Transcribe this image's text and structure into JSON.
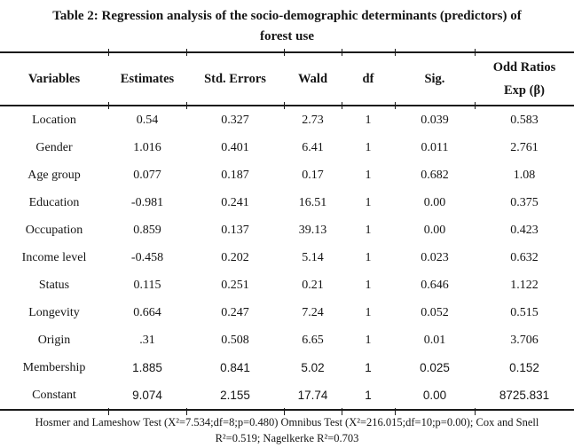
{
  "title": {
    "line1": "Table 2: Regression analysis of the socio-demographic determinants (predictors) of",
    "line2": "forest use"
  },
  "table": {
    "columns": [
      "Variables",
      "Estimates",
      "Std. Errors",
      "Wald",
      "df",
      "Sig.",
      [
        "Odd Ratios",
        "Exp (β)"
      ]
    ],
    "rows": [
      [
        "Location",
        "0.54",
        "0.327",
        "2.73",
        "1",
        "0.039",
        "0.583"
      ],
      [
        "Gender",
        "1.016",
        "0.401",
        "6.41",
        "1",
        "0.011",
        "2.761"
      ],
      [
        "Age group",
        "0.077",
        "0.187",
        "0.17",
        "1",
        "0.682",
        "1.08"
      ],
      [
        "Education",
        "-0.981",
        "0.241",
        "16.51",
        "1",
        "0.00",
        "0.375"
      ],
      [
        "Occupation",
        "0.859",
        "0.137",
        "39.13",
        "1",
        "0.00",
        "0.423"
      ],
      [
        "Income level",
        "-0.458",
        "0.202",
        "5.14",
        "1",
        "0.023",
        "0.632"
      ],
      [
        "Status",
        "0.115",
        "0.251",
        "0.21",
        "1",
        "0.646",
        "1.122"
      ],
      [
        "Longevity",
        "0.664",
        "0.247",
        "7.24",
        "1",
        "0.052",
        "0.515"
      ],
      [
        "Origin",
        ".31",
        "0.508",
        "6.65",
        "1",
        "0.01",
        "3.706"
      ],
      [
        "Membership",
        "1.885",
        "0.841",
        "5.02",
        "1",
        "0.025",
        "0.152"
      ],
      [
        "Constant",
        "9.074",
        "2.155",
        "17.74",
        "1",
        "0.00",
        "8725.831"
      ]
    ]
  },
  "footnote": {
    "line1": "Hosmer and Lameshow Test (X²=7.534;df=8;p=0.480) Omnibus Test  (X²=216.015;df=10;p=0.00); Cox and Snell",
    "line2": "R²=0.519; Nagelkerke R²=0.703"
  }
}
